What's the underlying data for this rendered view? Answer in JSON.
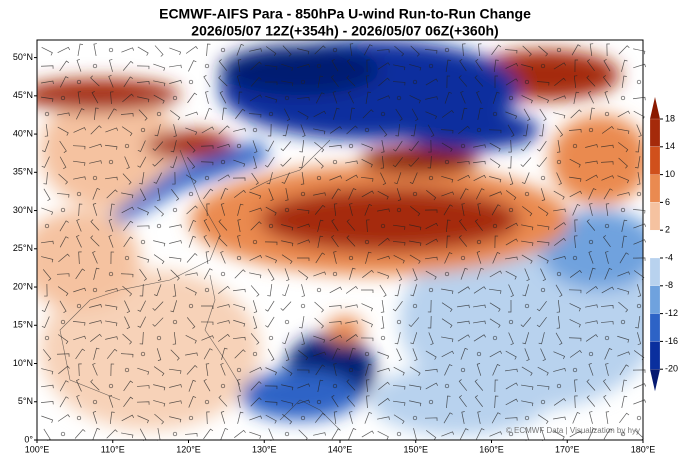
{
  "chart_data": {
    "type": "map",
    "title": "ECMWF-AIFS Para  - 850hPa U-wind Run-to-Run Change",
    "subtitle": "2026/05/07 12Z(+354h) - 2026/05/07 06Z(+360h)",
    "xlim": [
      100,
      180
    ],
    "ylim": [
      0,
      52.3
    ],
    "xticks": [
      {
        "value": 100,
        "label": "100°E"
      },
      {
        "value": 110,
        "label": "110°E"
      },
      {
        "value": 120,
        "label": "120°E"
      },
      {
        "value": 130,
        "label": "130°E"
      },
      {
        "value": 140,
        "label": "140°E"
      },
      {
        "value": 150,
        "label": "150°E"
      },
      {
        "value": 160,
        "label": "160°E"
      },
      {
        "value": 170,
        "label": "170°E"
      },
      {
        "value": 180,
        "label": "180°E"
      }
    ],
    "yticks": [
      {
        "value": 0,
        "label": "0°"
      },
      {
        "value": 5,
        "label": "5°N"
      },
      {
        "value": 10,
        "label": "10°N"
      },
      {
        "value": 15,
        "label": "15°N"
      },
      {
        "value": 20,
        "label": "20°N"
      },
      {
        "value": 25,
        "label": "25°N"
      },
      {
        "value": 30,
        "label": "30°N"
      },
      {
        "value": 35,
        "label": "35°N"
      },
      {
        "value": 40,
        "label": "40°N"
      },
      {
        "value": 45,
        "label": "45°N"
      },
      {
        "value": 50,
        "label": "50°N"
      }
    ],
    "colorbar": {
      "ticks": [
        18,
        14,
        10,
        6,
        2,
        -4,
        -8,
        -12,
        -16,
        -20
      ],
      "colors": [
        "#8b1a00",
        "#a52a0a",
        "#d0501c",
        "#ea8a50",
        "#f5c2a0",
        "#ffffff",
        "#b8d2ee",
        "#6fa2de",
        "#2d63c6",
        "#0a2f9e",
        "#061a72"
      ]
    },
    "credit": "© ECMWF Data | Visualization by hyy"
  }
}
